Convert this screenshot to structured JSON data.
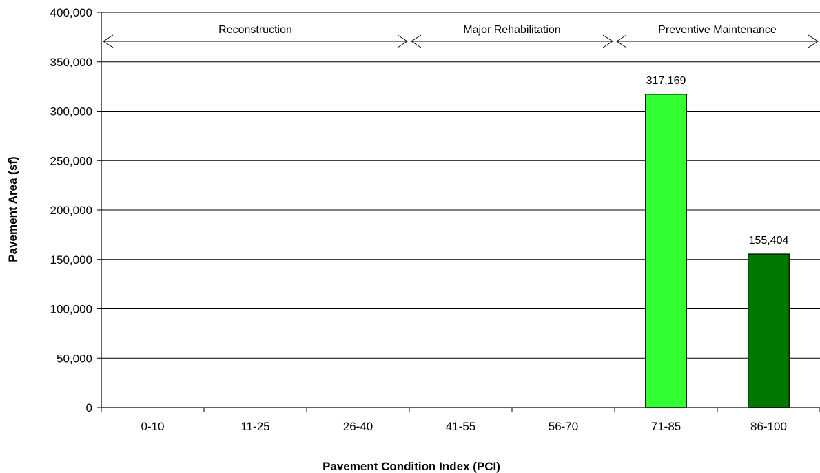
{
  "chart_data": {
    "type": "bar",
    "xlabel": "Pavement Condition Index (PCI)",
    "ylabel": "Pavement Area (sf)",
    "ylim": [
      0,
      400000
    ],
    "yticks": [
      0,
      50000,
      100000,
      150000,
      200000,
      250000,
      300000,
      350000,
      400000
    ],
    "ytick_labels": [
      "0",
      "50,000",
      "100,000",
      "150,000",
      "200,000",
      "250,000",
      "300,000",
      "350,000",
      "400,000"
    ],
    "grid": true,
    "categories": [
      "0-10",
      "11-25",
      "26-40",
      "41-55",
      "56-70",
      "71-85",
      "86-100"
    ],
    "values": [
      0,
      0,
      0,
      0,
      0,
      317169,
      155404
    ],
    "value_labels": [
      "",
      "",
      "",
      "",
      "",
      "317,169",
      "155,404"
    ],
    "bar_colors": [
      "#33ff33",
      "#33ff33",
      "#33ff33",
      "#33ff33",
      "#33ff33",
      "#33ff33",
      "#007800"
    ],
    "zones": [
      {
        "label": "Reconstruction",
        "from_category": 0,
        "to_category": 2
      },
      {
        "label": "Major Rehabilitation",
        "from_category": 3,
        "to_category": 4
      },
      {
        "label": "Preventive Maintenance",
        "from_category": 5,
        "to_category": 6
      }
    ]
  }
}
